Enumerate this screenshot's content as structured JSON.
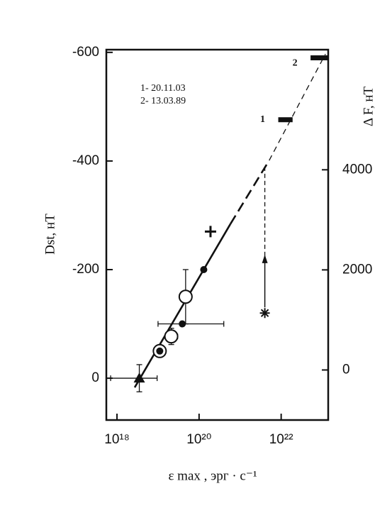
{
  "chart_data": {
    "type": "scatter",
    "ylabel": "Dst, нТ",
    "y2label": "Δ F, нТ",
    "xlabel": "ε max , эрг · с⁻¹",
    "annotations": [
      "1- 20.11.03",
      "2- 13.03.89"
    ],
    "xscale": "log",
    "xlim": [
      5.5e+17,
      1.4e+23
    ],
    "xticks": [
      {
        "value": 1e+18,
        "label": "10¹⁸"
      },
      {
        "value": 1e+20,
        "label": "10²⁰"
      },
      {
        "value": 1e+22,
        "label": "10²²"
      }
    ],
    "ylim": [
      77,
      -605
    ],
    "yticks": [
      -600,
      -400,
      -200,
      0
    ],
    "y2lim": [
      -1000,
      6400
    ],
    "y2ticks": [
      0,
      2000,
      4000
    ],
    "color": "#111111",
    "points": [
      {
        "marker": "triangle",
        "x": 3.5e+18,
        "y": 0,
        "xmin": 7e+17,
        "xmax": 9.5e+18,
        "yerr": 25
      },
      {
        "marker": "circle-dot",
        "x": 1.1e+19,
        "y": -50
      },
      {
        "marker": "open-circle",
        "x": 2.1e+19,
        "y": -77,
        "xmin": 1.5e+19,
        "xmax": 3e+19,
        "yerr": 15
      },
      {
        "marker": "dot",
        "x": 3.9e+19,
        "y": -100,
        "xmin": 1e+19,
        "xmax": 4e+20
      },
      {
        "marker": "open-circle",
        "x": 4.7e+19,
        "y": -150,
        "yerr": 50
      },
      {
        "marker": "dot",
        "x": 1.3e+20,
        "y": -200
      },
      {
        "marker": "plus",
        "x": 1.9e+20,
        "y": -270
      },
      {
        "marker": "asterisk",
        "x": 4e+21,
        "y": -120
      }
    ],
    "ranges": [
      {
        "label": "1",
        "xmin": 8.5e+21,
        "xmax": 1.9e+22,
        "y": -476
      },
      {
        "label": "2",
        "xmin": 5.2e+22,
        "xmax": 1.4e+23,
        "y": -590
      }
    ],
    "arrow": {
      "x": 4e+21,
      "values": [
        -120,
        -225,
        -390
      ]
    },
    "fit": [
      {
        "style": "solid",
        "x": [
          2.7e+18,
          5.8e+20
        ],
        "values": [
          17,
          -284
        ]
      },
      {
        "style": "dashed",
        "x": [
          5.8e+20,
          5.1e+21
        ],
        "values": [
          -284,
          -401
        ]
      },
      {
        "style": "dotted",
        "x": [
          5.1e+21,
          1.2e+23
        ],
        "values": [
          -401,
          -597
        ]
      }
    ]
  }
}
